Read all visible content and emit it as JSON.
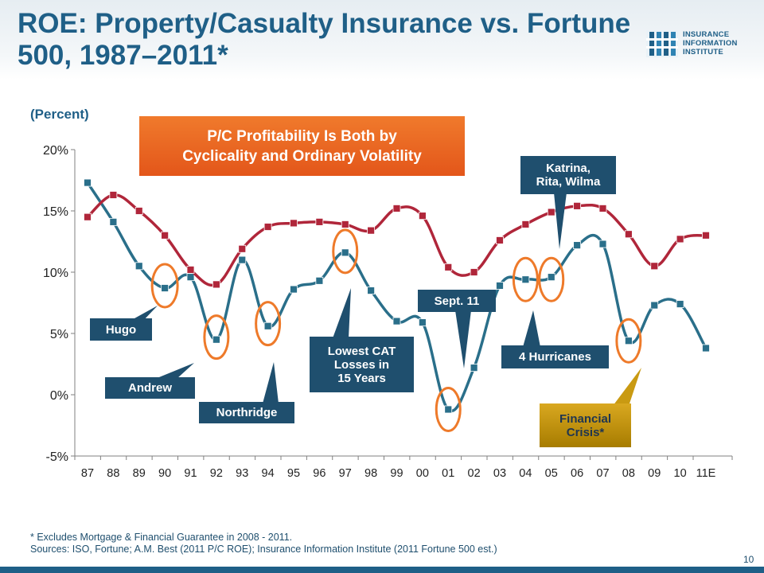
{
  "header": {
    "title": "ROE: Property/Casualty Insurance vs. Fortune 500, 1987–2011*",
    "logo_lines": [
      "INSURANCE",
      "INFORMATION",
      "INSTITUTE"
    ]
  },
  "unit_label": "(Percent)",
  "banner_lines": [
    "P/C Profitability Is Both by",
    "Cyclicality and Ordinary Volatility"
  ],
  "annotations": {
    "hugo": [
      "Hugo"
    ],
    "andrew": [
      "Andrew"
    ],
    "northridge": [
      "Northridge"
    ],
    "lowest_cat": [
      "Lowest CAT",
      "Losses in",
      "15 Years"
    ],
    "sept11": [
      "Sept. 11"
    ],
    "katrina": [
      "Katrina,",
      "Rita, Wilma"
    ],
    "hurricanes4": [
      "4 Hurricanes"
    ],
    "financial": [
      "Financial",
      "Crisis*"
    ]
  },
  "footnote_lines": [
    "* Excludes Mortgage & Financial Guarantee in 2008 - 2011.",
    "Sources: ISO, Fortune; A.M. Best (2011 P/C ROE); Insurance Information Institute (2011 Fortune 500 est.)"
  ],
  "page_number": "10",
  "colors": {
    "pc_series": "#2a6f8a",
    "fortune_series": "#b0263a",
    "highlight_circle": "#ee7a2a",
    "callout": "#1f4f6e",
    "title": "#1f5f87"
  },
  "chart_data": {
    "type": "line",
    "categories": [
      "87",
      "88",
      "89",
      "90",
      "91",
      "92",
      "93",
      "94",
      "95",
      "96",
      "97",
      "98",
      "99",
      "00",
      "01",
      "02",
      "03",
      "04",
      "05",
      "06",
      "07",
      "08",
      "09",
      "10",
      "11E"
    ],
    "yticks": [
      "20%",
      "15%",
      "10%",
      "5%",
      "0%",
      "-5%"
    ],
    "ylim": [
      -5,
      20
    ],
    "grid": false,
    "series": [
      {
        "key": "pc",
        "values": [
          17.3,
          14.1,
          10.5,
          8.7,
          9.6,
          4.5,
          11.0,
          5.6,
          8.6,
          9.3,
          11.6,
          8.5,
          6.0,
          5.9,
          -1.2,
          2.2,
          8.9,
          9.4,
          9.6,
          12.2,
          12.3,
          4.4,
          7.3,
          7.4,
          3.8
        ]
      },
      {
        "key": "fortune",
        "values": [
          14.5,
          16.3,
          15.0,
          13.0,
          10.2,
          9.0,
          11.9,
          13.7,
          14.0,
          14.1,
          13.9,
          13.4,
          15.2,
          14.6,
          10.4,
          10.0,
          12.6,
          13.9,
          14.9,
          15.4,
          15.2,
          13.1,
          10.5,
          12.7,
          13.0
        ]
      }
    ]
  }
}
